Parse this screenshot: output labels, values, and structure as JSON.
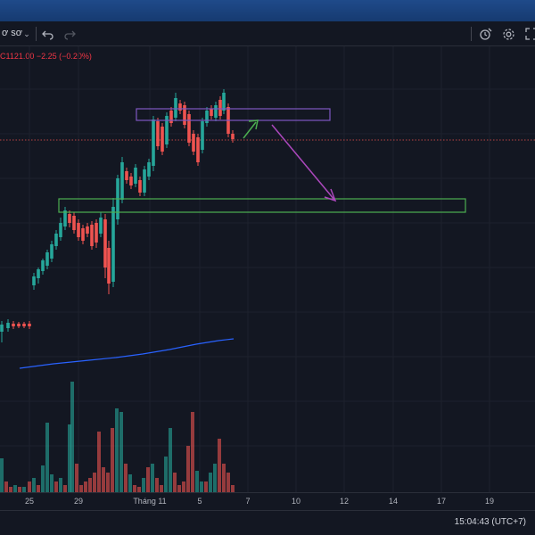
{
  "toolbar": {
    "chart_type_label": "ơ sơ",
    "undo_icon": "undo-icon",
    "redo_icon": "redo-icon",
    "dropdown_icon": "chevron-down-icon",
    "right_icons": [
      "alert-clock-icon",
      "settings-icon",
      "fullscreen-icon"
    ]
  },
  "legend": {
    "close_key": "C",
    "close_value": "1121.00",
    "change": "−2.25 (−0.20%)"
  },
  "time_axis": {
    "ticks": [
      "25",
      "29",
      "Tháng 11",
      "5",
      "7",
      "10",
      "12",
      "14",
      "17",
      "19"
    ]
  },
  "status": {
    "clock": "15:04:43 (UTC+7)"
  },
  "colors": {
    "up": "#26a69a",
    "down": "#ef5350",
    "background": "#131722",
    "ma_line": "#2962ff",
    "resistance_zone": "#7e57c2",
    "support_zone": "#4caf50",
    "arrow_up": "#4caf50",
    "arrow_down": "#ab47bc"
  },
  "chart_data": {
    "type": "candlestick",
    "last_close": 1121.0,
    "change": -2.25,
    "change_pct": -0.2,
    "annotations": [
      "resistance-zone",
      "support-zone",
      "up-arrow",
      "down-arrow"
    ]
  }
}
